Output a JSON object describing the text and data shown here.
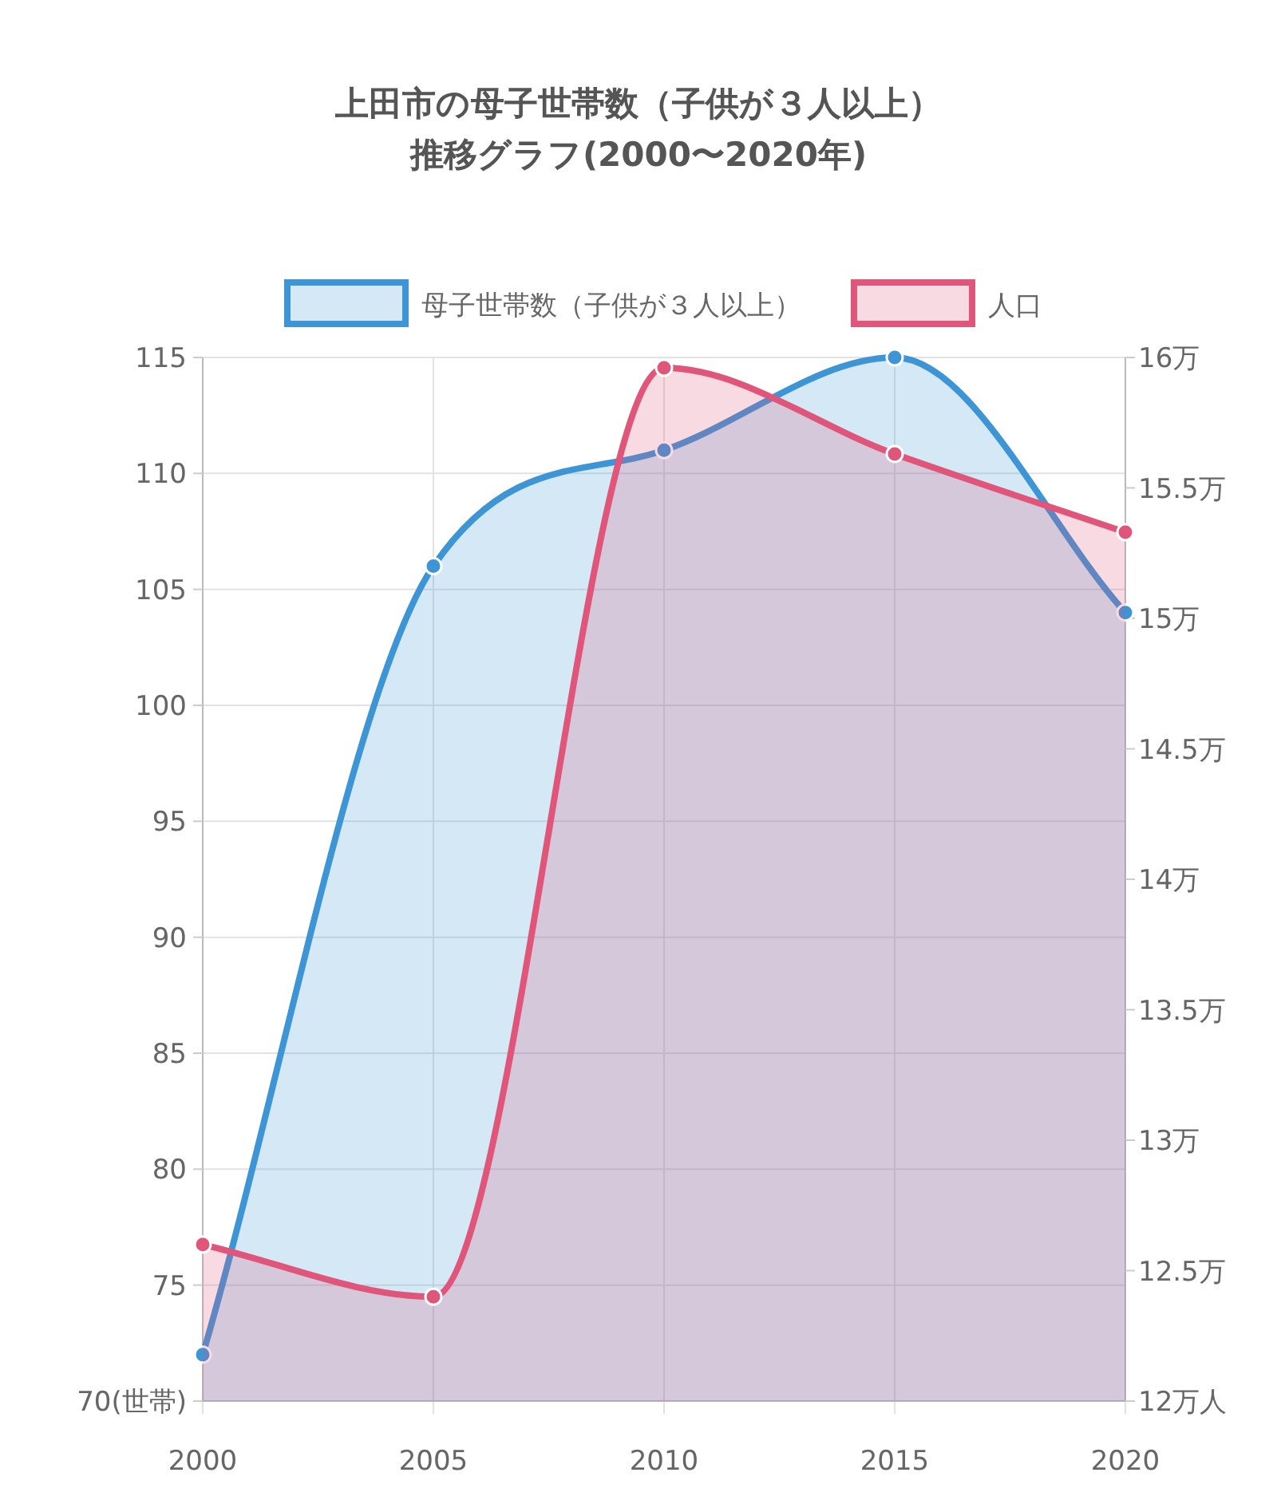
{
  "chart_data": {
    "type": "area",
    "title": "上田市の母子世帯数（子供が３人以上）",
    "subtitle": "推移グラフ(2000〜2020年)",
    "categories": [
      "2000",
      "2005",
      "2010",
      "2015",
      "2020"
    ],
    "series": [
      {
        "name": "母子世帯数（子供が３人以上）",
        "color": "#3d95d6",
        "values": [
          72,
          106,
          111,
          115,
          104
        ]
      },
      {
        "name": "人口",
        "color": "#e0567a",
        "axis": "y2",
        "values": [
          12.6,
          12.4,
          15.96,
          15.63,
          15.33
        ]
      }
    ],
    "ylim": [
      70,
      115
    ],
    "yticks": [
      {
        "value": 70,
        "label": "70(世帯)"
      },
      75,
      80,
      85,
      90,
      95,
      100,
      105,
      110,
      115
    ],
    "y2lim": [
      12,
      16
    ],
    "y2ticks": [
      {
        "value": 12,
        "label": "12万人"
      },
      {
        "value": 12.5,
        "label": "12.5万"
      },
      {
        "value": 13,
        "label": "13万"
      },
      {
        "value": 13.5,
        "label": "13.5万"
      },
      {
        "value": 14,
        "label": "14万"
      },
      {
        "value": 14.5,
        "label": "14.5万"
      },
      {
        "value": 15,
        "label": "15万"
      },
      {
        "value": 15.5,
        "label": "15.5万"
      },
      {
        "value": 16,
        "label": "16万"
      }
    ],
    "grid": true,
    "legend": "top",
    "marker": "circle",
    "line_style": "solid"
  }
}
